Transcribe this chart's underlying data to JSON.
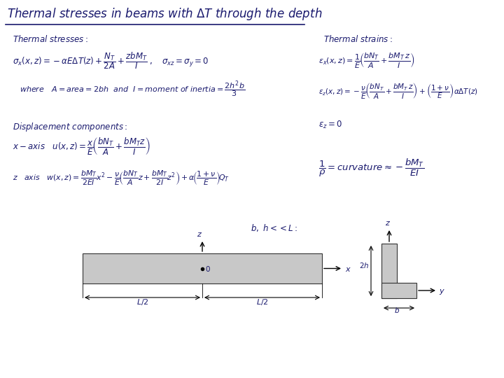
{
  "bg_color": "#ffffff",
  "text_color": "#1a1a6e",
  "title_color": "#1a1a6e",
  "fig_width": 7.2,
  "fig_height": 5.4,
  "dpi": 100
}
